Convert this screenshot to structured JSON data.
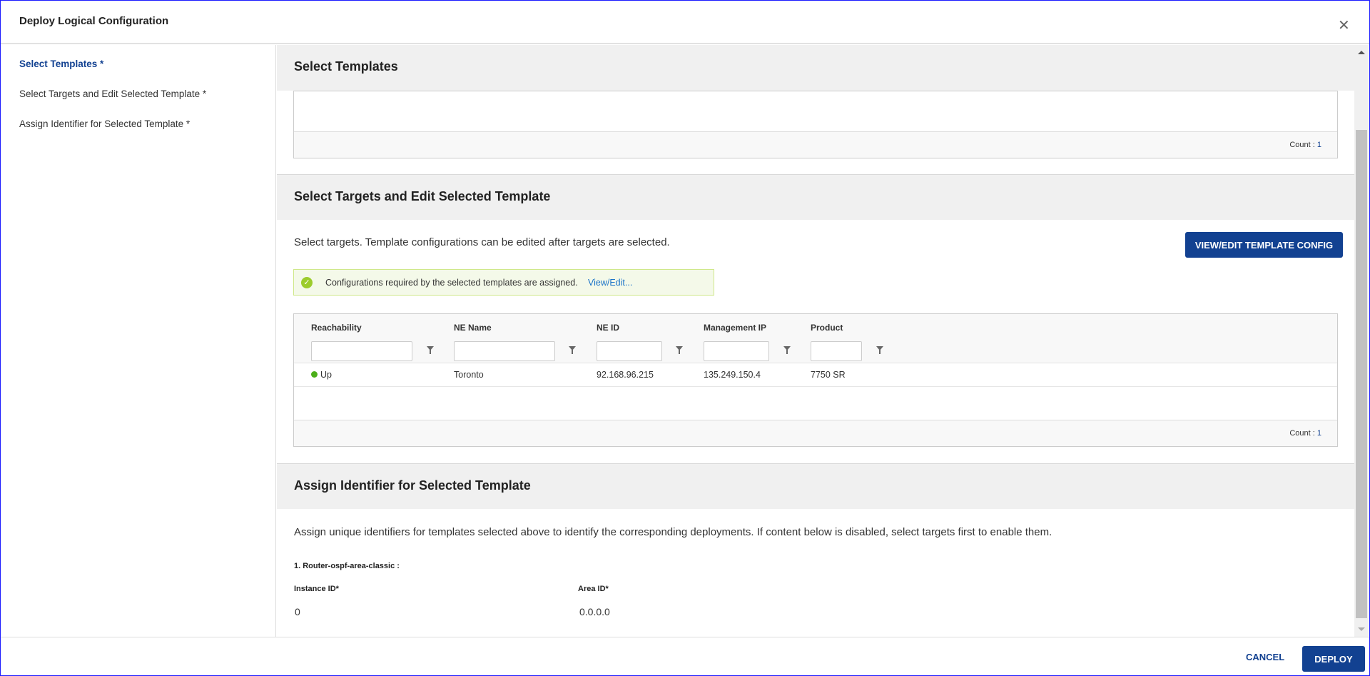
{
  "dialog": {
    "title": "Deploy Logical Configuration",
    "close_icon": "close-icon"
  },
  "sidebar": {
    "items": [
      {
        "label": "Select Templates *",
        "active": true
      },
      {
        "label": "Select Targets and Edit Selected Template *"
      },
      {
        "label": "Assign Identifier for Selected Template *"
      }
    ]
  },
  "select_templates": {
    "title": "Select Templates",
    "count_label": "Count :",
    "count": "1"
  },
  "select_targets": {
    "title": "Select Targets and Edit Selected Template",
    "description": "Select targets. Template configurations can be edited after targets are selected.",
    "view_edit_button": "VIEW/EDIT TEMPLATE CONFIG",
    "banner": {
      "text": "Configurations required by the selected templates are assigned.",
      "link": "View/Edit...",
      "status": "success"
    },
    "table": {
      "columns": [
        "Reachability",
        "NE Name",
        "NE ID",
        "Management IP",
        "Product"
      ],
      "rows": [
        {
          "reachability": "Up",
          "ne_name": "Toronto",
          "ne_id": "92.168.96.215",
          "management_ip": "135.249.150.4",
          "product": "7750 SR"
        }
      ],
      "count_label": "Count :",
      "count": "1"
    }
  },
  "assign_identifier": {
    "title": "Assign Identifier for Selected Template",
    "description": "Assign unique identifiers for templates selected above to identify the corresponding deployments. If content below is disabled, select targets first to enable them.",
    "template_label": "1. Router-ospf-area-classic :",
    "fields": [
      {
        "label": "Instance ID*",
        "value": "0"
      },
      {
        "label": "Area ID*",
        "value": "0.0.0.0"
      }
    ]
  },
  "footer": {
    "cancel": "CANCEL",
    "deploy": "DEPLOY"
  },
  "colors": {
    "primary": "#124191",
    "success": "#9ccc2c",
    "status_up": "#4caf1a"
  }
}
